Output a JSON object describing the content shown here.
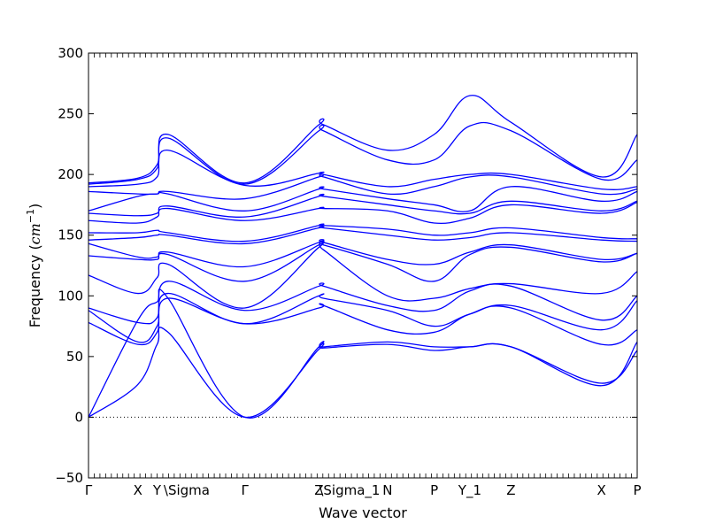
{
  "chart_data": {
    "type": "line",
    "title": "",
    "xlabel": "Wave vector",
    "ylabel_text": "Frequency (",
    "ylabel_unit_base": "cm",
    "ylabel_unit_exp": "−1",
    "ylabel_close": ")",
    "ylim": [
      -50,
      300
    ],
    "yticks": [
      -50,
      0,
      50,
      100,
      150,
      200,
      250,
      300
    ],
    "xlim": [
      0,
      10
    ],
    "xticks": [
      {
        "x": 0.0,
        "label": "Γ"
      },
      {
        "x": 0.9,
        "label": "X"
      },
      {
        "x": 1.25,
        "label": "Y"
      },
      {
        "x": 1.45,
        "label": "\\Sigma"
      },
      {
        "x": 2.85,
        "label": "Γ"
      },
      {
        "x": 4.2,
        "label": "Z"
      },
      {
        "x": 4.28,
        "label": "\\Sigma_1"
      },
      {
        "x": 5.45,
        "label": "N"
      },
      {
        "x": 6.3,
        "label": "P"
      },
      {
        "x": 6.95,
        "label": "Y_1"
      },
      {
        "x": 7.7,
        "label": "Z"
      },
      {
        "x": 9.35,
        "label": "X"
      },
      {
        "x": 10.0,
        "label": "P"
      }
    ],
    "zero_line": true,
    "line_color": "#0000ff",
    "x": [
      0,
      0.9,
      1.25,
      1.45,
      2.85,
      4.2,
      4.28,
      5.45,
      6.3,
      6.95,
      7.7,
      9.35,
      10.0
    ],
    "series": [
      {
        "values": [
          0,
          27,
          60,
          70,
          0,
          56,
          57,
          60,
          55,
          58,
          58,
          28,
          55
        ]
      },
      {
        "values": [
          0,
          80,
          95,
          98,
          0,
          58,
          58,
          62,
          58,
          58,
          58,
          26,
          62
        ]
      },
      {
        "values": [
          78,
          60,
          70,
          98,
          77,
          90,
          92,
          72,
          70,
          85,
          90,
          60,
          72
        ]
      },
      {
        "values": [
          88,
          62,
          75,
          102,
          77,
          100,
          98,
          88,
          75,
          85,
          92,
          72,
          96
        ]
      },
      {
        "values": [
          90,
          78,
          82,
          112,
          88,
          108,
          108,
          92,
          88,
          104,
          108,
          80,
          100
        ]
      },
      {
        "values": [
          117,
          102,
          115,
          126,
          90,
          140,
          138,
          100,
          98,
          106,
          110,
          102,
          120
        ]
      },
      {
        "values": [
          133,
          130,
          130,
          134,
          112,
          142,
          142,
          126,
          112,
          134,
          140,
          128,
          135
        ]
      },
      {
        "values": [
          143,
          132,
          132,
          136,
          124,
          144,
          144,
          130,
          126,
          136,
          142,
          130,
          135
        ]
      },
      {
        "values": [
          146,
          148,
          150,
          150,
          143,
          156,
          156,
          150,
          146,
          148,
          152,
          146,
          145
        ]
      },
      {
        "values": [
          152,
          152,
          154,
          152,
          145,
          158,
          158,
          155,
          150,
          152,
          156,
          148,
          147
        ]
      },
      {
        "values": [
          162,
          160,
          165,
          172,
          162,
          172,
          172,
          170,
          160,
          164,
          175,
          168,
          177
        ]
      },
      {
        "values": [
          168,
          166,
          168,
          174,
          165,
          182,
          182,
          175,
          170,
          168,
          178,
          170,
          178
        ]
      },
      {
        "values": [
          170,
          182,
          184,
          184,
          170,
          188,
          188,
          180,
          175,
          170,
          190,
          178,
          186
        ]
      },
      {
        "values": [
          186,
          184,
          184,
          186,
          180,
          198,
          198,
          184,
          190,
          198,
          198,
          184,
          188
        ]
      },
      {
        "values": [
          190,
          192,
          198,
          220,
          191,
          201,
          200,
          190,
          196,
          200,
          200,
          188,
          190
        ]
      },
      {
        "values": [
          192,
          196,
          205,
          230,
          192,
          236,
          236,
          212,
          212,
          240,
          236,
          196,
          212
        ]
      },
      {
        "values": [
          193,
          197,
          208,
          233,
          193,
          241,
          241,
          220,
          233,
          265,
          243,
          198,
          233
        ]
      }
    ]
  }
}
